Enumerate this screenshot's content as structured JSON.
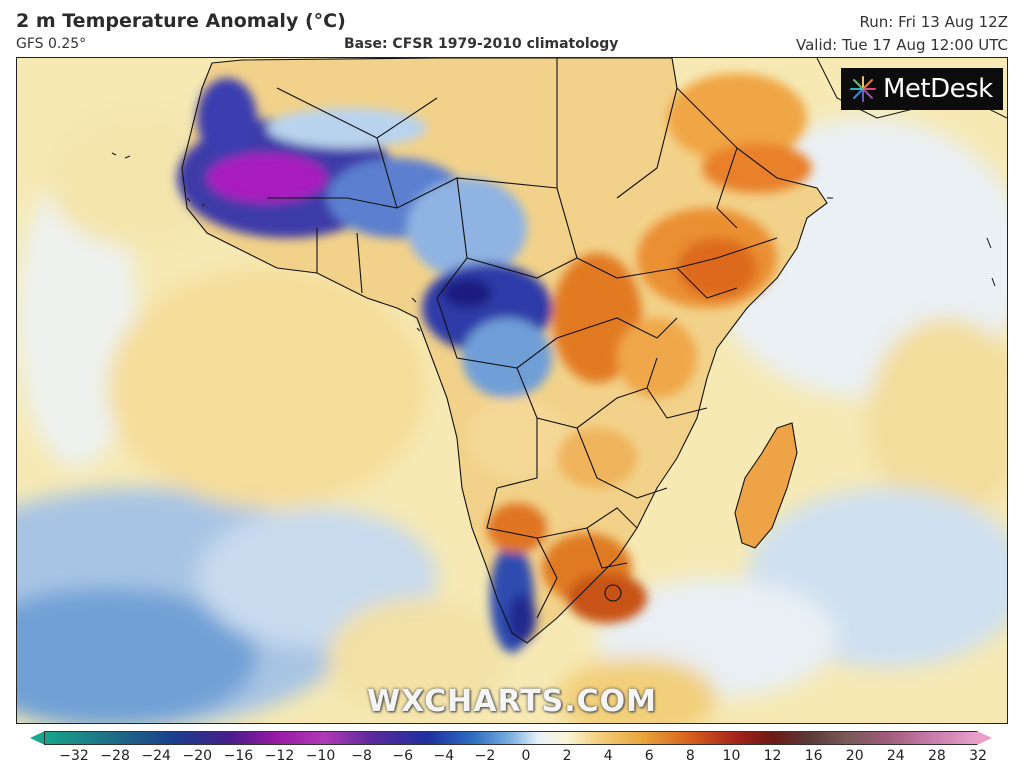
{
  "header": {
    "title": "2 m Temperature Anomaly (°C)",
    "model": "GFS 0.25°",
    "base": "Base: CFSR 1979-2010 climatology",
    "run": "Run: Fri 13 Aug 12Z",
    "valid": "Valid: Tue 17 Aug 12:00 UTC"
  },
  "logo": {
    "text": "MetDesk",
    "icon": "starburst-logo-icon"
  },
  "watermark": "WXCHARTS.COM",
  "map": {
    "region": "Africa and surrounding oceans",
    "colors": {
      "ocean_warm": "#f7e7a8",
      "ocean_neutral": "#eef3f2",
      "ocean_cool": "#a9c7e6",
      "cold_strong": "#2a2f9a",
      "cold_extreme": "#b21fb8",
      "warm_strong": "#e0701e",
      "border": "#111111"
    }
  },
  "colorbar": {
    "ticks": [
      "−32",
      "−28",
      "−24",
      "−20",
      "−16",
      "−12",
      "−10",
      "−8",
      "−6",
      "−4",
      "−2",
      "0",
      "2",
      "4",
      "6",
      "8",
      "10",
      "12",
      "16",
      "20",
      "24",
      "28",
      "32"
    ]
  }
}
